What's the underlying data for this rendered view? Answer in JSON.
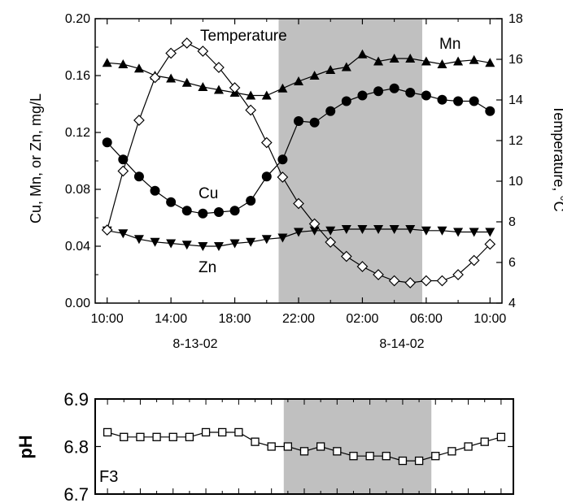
{
  "chart_data": [
    {
      "type": "line",
      "xlabel_dates": [
        "8-13-02",
        "8-14-02"
      ],
      "x_tick_labels": [
        "10:00",
        "14:00",
        "18:00",
        "22:00",
        "02:00",
        "06:00",
        "10:00"
      ],
      "x_hours_elapsed": [
        0,
        4,
        8,
        12,
        16,
        20,
        24
      ],
      "ylabel_left": "Cu, Mn, or Zn, mg/L",
      "ylim_left": [
        0.0,
        0.2
      ],
      "y_ticks_left": [
        "0.00",
        "0.04",
        "0.08",
        "0.12",
        "0.16",
        "0.20"
      ],
      "ylabel_right": "Temperature, °C",
      "ylim_right": [
        4,
        18
      ],
      "y_ticks_right": [
        "4",
        "6",
        "8",
        "10",
        "12",
        "14",
        "16",
        "18"
      ],
      "shaded_period_hours": [
        10.75,
        19.75
      ],
      "grid": false,
      "series": [
        {
          "name": "Mn",
          "axis": "left",
          "marker": "filled-triangle-up",
          "x": [
            0,
            1,
            2,
            3,
            4,
            5,
            6,
            7,
            8,
            9,
            10,
            11,
            12,
            13,
            14,
            15,
            16,
            17,
            18,
            19,
            20,
            21,
            22,
            23,
            24
          ],
          "y": [
            0.169,
            0.168,
            0.165,
            0.16,
            0.158,
            0.155,
            0.152,
            0.15,
            0.148,
            0.146,
            0.146,
            0.151,
            0.156,
            0.16,
            0.164,
            0.166,
            0.175,
            0.17,
            0.172,
            0.172,
            0.17,
            0.168,
            0.17,
            0.171,
            0.169
          ]
        },
        {
          "name": "Cu",
          "axis": "left",
          "marker": "filled-circle",
          "x": [
            0,
            1,
            2,
            3,
            4,
            5,
            6,
            7,
            8,
            9,
            10,
            11,
            12,
            13,
            14,
            15,
            16,
            17,
            18,
            19,
            20,
            21,
            22,
            23,
            24
          ],
          "y": [
            0.113,
            0.101,
            0.089,
            0.079,
            0.071,
            0.065,
            0.063,
            0.064,
            0.065,
            0.072,
            0.089,
            0.101,
            0.128,
            0.127,
            0.135,
            0.142,
            0.146,
            0.149,
            0.151,
            0.148,
            0.146,
            0.143,
            0.142,
            0.142,
            0.135
          ]
        },
        {
          "name": "Zn",
          "axis": "left",
          "marker": "filled-triangle-down",
          "x": [
            0,
            1,
            2,
            3,
            4,
            5,
            6,
            7,
            8,
            9,
            10,
            11,
            12,
            13,
            14,
            15,
            16,
            17,
            18,
            19,
            20,
            21,
            22,
            23,
            24
          ],
          "y": [
            0.051,
            0.049,
            0.045,
            0.043,
            0.042,
            0.041,
            0.04,
            0.04,
            0.042,
            0.043,
            0.045,
            0.046,
            0.05,
            0.051,
            0.051,
            0.052,
            0.052,
            0.052,
            0.052,
            0.052,
            0.051,
            0.051,
            0.05,
            0.05,
            0.05
          ]
        },
        {
          "name": "Temperature",
          "axis": "right",
          "marker": "open-diamond",
          "x": [
            0,
            1,
            2,
            3,
            4,
            5,
            6,
            7,
            8,
            9,
            10,
            11,
            12,
            13,
            14,
            15,
            16,
            17,
            18,
            19,
            20,
            21,
            22,
            23,
            24
          ],
          "y": [
            7.6,
            10.5,
            13.0,
            15.1,
            16.3,
            16.8,
            16.4,
            15.6,
            14.6,
            13.5,
            11.9,
            10.2,
            8.9,
            7.9,
            7.0,
            6.3,
            5.8,
            5.4,
            5.1,
            5.0,
            5.1,
            5.1,
            5.4,
            6.1,
            6.9
          ]
        }
      ],
      "annotations": [
        "Temperature",
        "Mn",
        "Cu",
        "Zn"
      ]
    },
    {
      "type": "line",
      "ylabel": "pH",
      "ylim": [
        6.7,
        6.9
      ],
      "y_ticks": [
        "6.7",
        "6.8",
        "6.9"
      ],
      "panel_label": "F3",
      "shaded_period_hours": [
        10.75,
        19.75
      ],
      "grid": false,
      "series": [
        {
          "name": "pH",
          "marker": "open-square",
          "x": [
            0,
            1,
            2,
            3,
            4,
            5,
            6,
            7,
            8,
            9,
            10,
            11,
            12,
            13,
            14,
            15,
            16,
            17,
            18,
            19,
            20,
            21,
            22,
            23,
            24
          ],
          "y": [
            6.83,
            6.82,
            6.82,
            6.82,
            6.82,
            6.82,
            6.83,
            6.83,
            6.83,
            6.81,
            6.8,
            6.8,
            6.79,
            6.8,
            6.79,
            6.78,
            6.78,
            6.78,
            6.77,
            6.77,
            6.78,
            6.79,
            6.8,
            6.81,
            6.82
          ]
        }
      ]
    }
  ],
  "colors": {
    "shade": "#c0c0c0",
    "line": "#000000",
    "open_fill": "#ffffff"
  }
}
